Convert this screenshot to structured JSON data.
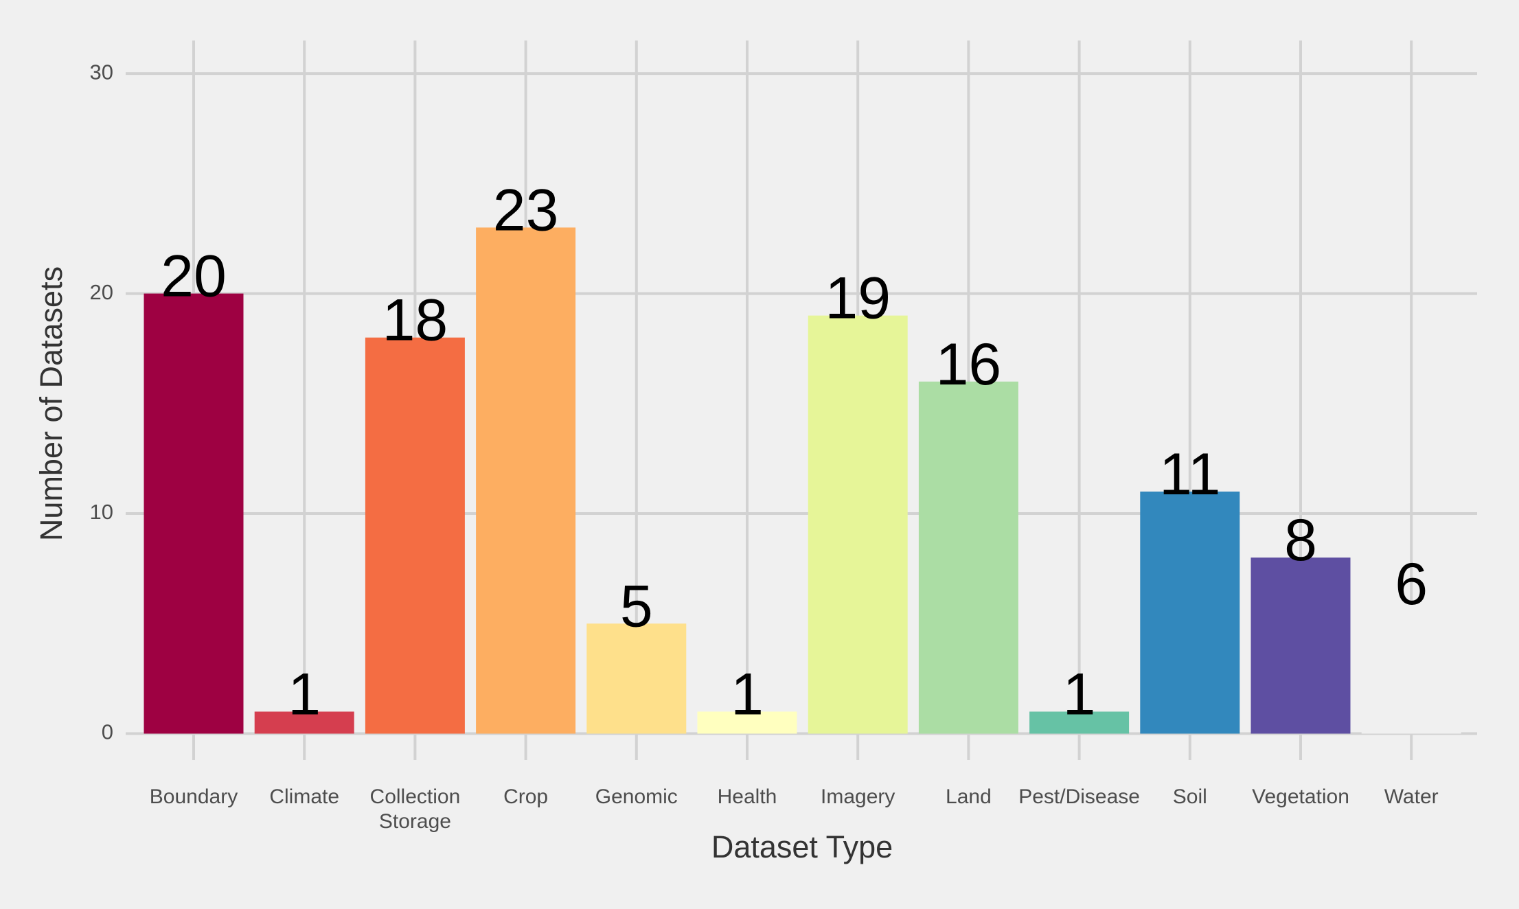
{
  "chart_data": {
    "type": "bar",
    "x_label": "Dataset Type",
    "y_label": "Number of Datasets",
    "categories": [
      "Boundary",
      "Climate",
      "Collection\nStorage",
      "Crop",
      "Genomic",
      "Health",
      "Imagery",
      "Land",
      "Pest/Disease",
      "Soil",
      "Vegetation",
      "Water"
    ],
    "values": [
      20,
      1,
      18,
      23,
      5,
      1,
      19,
      16,
      1,
      11,
      8,
      6
    ],
    "colors": [
      "#9e0142",
      "#d53e4f",
      "#f46d43",
      "#fdae61",
      "#fee08b",
      "#ffffbf",
      "#e6f598",
      "#abdda4",
      "#66c2a5",
      "#3288bd",
      "#5e4fa2",
      "#f0f0f0"
    ],
    "ylim": [
      -1.2,
      31.5
    ],
    "yticks": [
      0,
      10,
      20,
      30
    ],
    "grid": true
  }
}
